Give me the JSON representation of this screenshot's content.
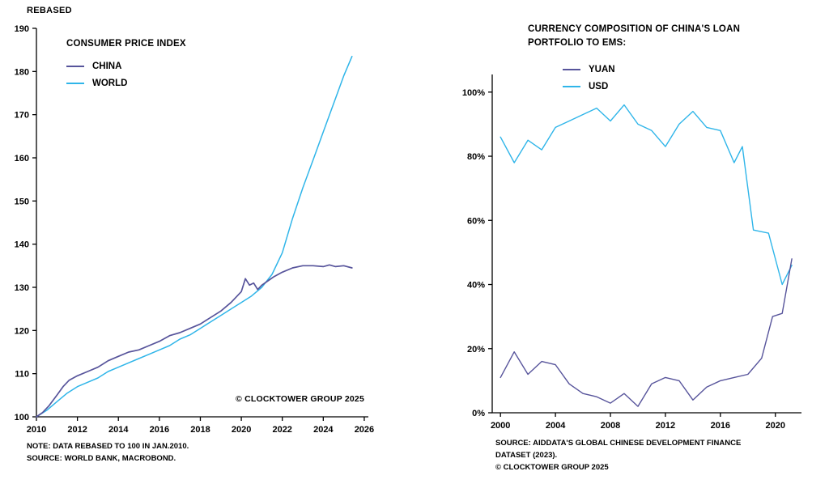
{
  "page": {
    "background": "#ffffff",
    "text_color": "#000000"
  },
  "chart_data": [
    {
      "type": "line",
      "title": "CONSUMER PRICE INDEX",
      "ylabel_top": "REBASED",
      "watermark": "© CLOCKTOWER GROUP 2025",
      "notes": [
        "NOTE: DATA REBASED TO 100 IN JAN.2010.",
        "SOURCE: WORLD BANK, MACROBOND."
      ],
      "legend_position": "upper-left-inside",
      "grid": false,
      "xlim": [
        2010,
        2026.2
      ],
      "ylim": [
        100,
        190
      ],
      "xtick_vals": [
        2010,
        2012,
        2014,
        2016,
        2018,
        2020,
        2022,
        2024,
        2026
      ],
      "xtick_labels": [
        "2010",
        "2012",
        "2014",
        "2016",
        "2018",
        "2020",
        "2022",
        "2024",
        "2026"
      ],
      "ytick_vals": [
        100,
        110,
        120,
        130,
        140,
        150,
        160,
        170,
        180,
        190
      ],
      "ytick_labels": [
        "100",
        "110",
        "120",
        "130",
        "140",
        "150",
        "160",
        "170",
        "180",
        "190"
      ],
      "series": [
        {
          "name": "WORLD",
          "color": "#2FB5E9",
          "width": 1.5,
          "x": [
            2010,
            2010.5,
            2011,
            2011.5,
            2012,
            2012.5,
            2013,
            2013.5,
            2014,
            2014.5,
            2015,
            2015.5,
            2016,
            2016.5,
            2017,
            2017.5,
            2018,
            2018.5,
            2019,
            2019.5,
            2020,
            2020.5,
            2021,
            2021.5,
            2022,
            2022.5,
            2023,
            2023.5,
            2024,
            2024.5,
            2025,
            2025.4
          ],
          "y": [
            100,
            101.5,
            103.5,
            105.5,
            107,
            108,
            109,
            110.5,
            111.5,
            112.5,
            113.5,
            114.5,
            115.5,
            116.5,
            118,
            119,
            120.5,
            122,
            123.5,
            125,
            126.5,
            128,
            130,
            133,
            138,
            146,
            153,
            159.5,
            166,
            172.5,
            179,
            183.5
          ]
        },
        {
          "name": "CHINA",
          "color": "#57549B",
          "width": 1.7,
          "x": [
            2010,
            2010.3,
            2010.6,
            2011,
            2011.3,
            2011.6,
            2012,
            2012.5,
            2013,
            2013.5,
            2014,
            2014.5,
            2015,
            2015.5,
            2016,
            2016.5,
            2017,
            2017.5,
            2018,
            2018.5,
            2019,
            2019.5,
            2020,
            2020.2,
            2020.4,
            2020.6,
            2020.8,
            2021,
            2021.3,
            2021.6,
            2022,
            2022.5,
            2023,
            2023.5,
            2024,
            2024.3,
            2024.6,
            2025,
            2025.4
          ],
          "y": [
            100,
            101,
            102.5,
            105,
            107,
            108.5,
            109.5,
            110.5,
            111.5,
            113,
            114,
            115,
            115.5,
            116.5,
            117.5,
            118.8,
            119.5,
            120.5,
            121.5,
            123,
            124.5,
            126.5,
            129,
            132,
            130.5,
            131,
            129.5,
            130.5,
            131.5,
            132.5,
            133.5,
            134.5,
            135,
            135,
            134.8,
            135.2,
            134.8,
            135,
            134.5
          ]
        }
      ],
      "legend": [
        "CHINA",
        "WORLD"
      ]
    },
    {
      "type": "line",
      "title": "CURRENCY COMPOSITION OF CHINA'S LOAN PORTFOLIO TO EMS:",
      "ylabel_top": "",
      "watermark": "",
      "notes": [
        "SOURCE: AIDDATA'S GLOBAL CHINESE DEVELOPMENT FINANCE DATASET (2023).",
        "© CLOCKTOWER GROUP 2025"
      ],
      "legend_position": "upper-left-inside",
      "grid": false,
      "xlim": [
        1999.4,
        2021.9
      ],
      "ylim": [
        0,
        105.5
      ],
      "xtick_vals": [
        2000,
        2004,
        2008,
        2012,
        2016,
        2020
      ],
      "xtick_labels": [
        "2000",
        "2004",
        "2008",
        "2012",
        "2016",
        "2020"
      ],
      "ytick_vals": [
        0,
        20,
        40,
        60,
        80,
        100
      ],
      "ytick_labels": [
        "0%",
        "20%",
        "40%",
        "60%",
        "80%",
        "100%"
      ],
      "series": [
        {
          "name": "USD",
          "color": "#2FB5E9",
          "width": 1.4,
          "x": [
            2000,
            2001,
            2002,
            2003,
            2004,
            2005,
            2006,
            2007,
            2008,
            2009,
            2010,
            2011,
            2012,
            2013,
            2014,
            2015,
            2016,
            2017,
            2017.6,
            2018.4,
            2019.5,
            2020.5,
            2021.2
          ],
          "y": [
            86,
            78,
            85,
            82,
            89,
            91,
            93,
            95,
            91,
            96,
            90,
            88,
            83,
            90,
            94,
            89,
            88,
            78,
            83,
            57,
            56,
            40,
            46
          ]
        },
        {
          "name": "YUAN",
          "color": "#57549B",
          "width": 1.4,
          "x": [
            2000,
            2001,
            2002,
            2003,
            2004,
            2005,
            2006,
            2007,
            2008,
            2009,
            2010,
            2011,
            2012,
            2013,
            2014,
            2015,
            2016,
            2017,
            2018,
            2019,
            2019.8,
            2020.5,
            2021.2
          ],
          "y": [
            11,
            19,
            12,
            16,
            15,
            9,
            6,
            5,
            3,
            6,
            2,
            9,
            11,
            10,
            4,
            8,
            10,
            11,
            12,
            17,
            30,
            31,
            48
          ]
        }
      ],
      "legend": [
        "YUAN",
        "USD"
      ]
    }
  ]
}
